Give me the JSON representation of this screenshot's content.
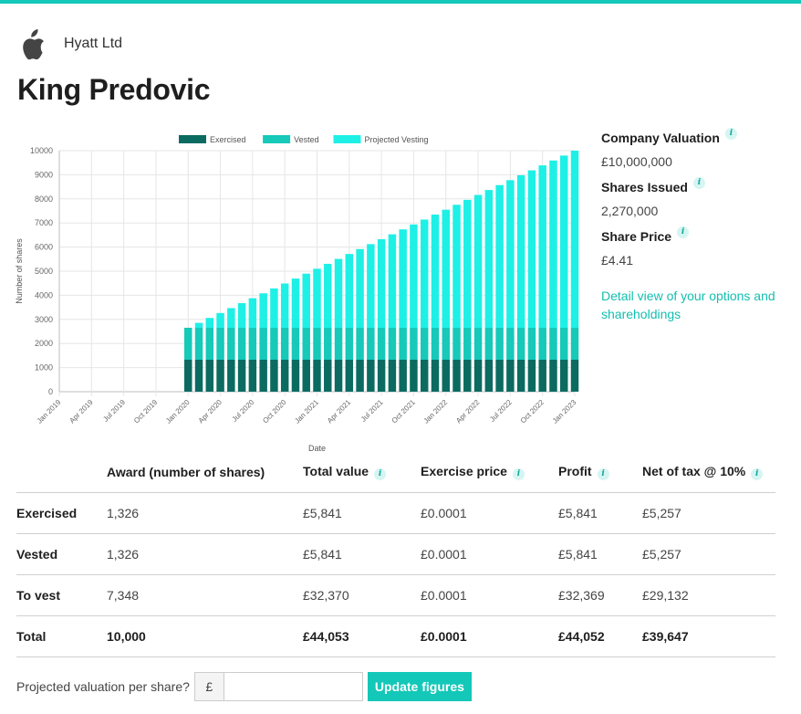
{
  "company": {
    "name": "Hyatt Ltd",
    "logo_icon": "apple-logo-icon"
  },
  "person": {
    "name": "King Predovic"
  },
  "summary": {
    "valuation_label": "Company Valuation",
    "valuation_value": "£10,000,000",
    "shares_label": "Shares Issued",
    "shares_value": "2,270,000",
    "price_label": "Share Price",
    "price_value": "£4.41",
    "detail_link": "Detail view of your options and shareholdings",
    "info_icon": "i"
  },
  "table": {
    "headers": [
      "",
      "Award (number of shares)",
      "Total value",
      "Exercise price",
      "Profit",
      "Net of tax @ 10%"
    ],
    "headers_info": [
      false,
      false,
      true,
      true,
      true,
      true
    ],
    "rows": [
      {
        "label": "Exercised",
        "award": "1,326",
        "total": "£5,841",
        "price": "£0.0001",
        "profit": "£5,841",
        "net": "£5,257"
      },
      {
        "label": "Vested",
        "award": "1,326",
        "total": "£5,841",
        "price": "£0.0001",
        "profit": "£5,841",
        "net": "£5,257"
      },
      {
        "label": "To vest",
        "award": "7,348",
        "total": "£32,370",
        "price": "£0.0001",
        "profit": "£32,369",
        "net": "£29,132"
      },
      {
        "label": "Total",
        "award": "10,000",
        "total": "£44,053",
        "price": "£0.0001",
        "profit": "£44,052",
        "net": "£39,647"
      }
    ]
  },
  "projection": {
    "label": "Projected valuation per share?",
    "currency": "£",
    "value": "",
    "placeholder": "",
    "button": "Update figures"
  },
  "colors": {
    "accent": "#13c8b8",
    "exercised": "#0b6b61",
    "vested": "#16c9b9",
    "projected": "#1ef0e6"
  },
  "chart_data": {
    "type": "bar",
    "stacked": true,
    "xlabel": "Date",
    "ylabel": "Number of shares",
    "ylim": [
      0,
      10000
    ],
    "yticks": [
      0,
      1000,
      2000,
      3000,
      4000,
      5000,
      6000,
      7000,
      8000,
      9000,
      10000
    ],
    "x_ticks": [
      "Jan 2019",
      "Apr 2019",
      "Jul 2019",
      "Oct 2019",
      "Jan 2020",
      "Apr 2020",
      "Jul 2020",
      "Oct 2020",
      "Jan 2021",
      "Apr 2021",
      "Jul 2021",
      "Oct 2021",
      "Jan 2022",
      "Apr 2022",
      "Jul 2022",
      "Oct 2022",
      "Jan 2023"
    ],
    "x_range": [
      "2019-01",
      "2023-01"
    ],
    "bar_start": "2020-01",
    "bar_end": "2023-01",
    "legend_position": "top",
    "grid": true,
    "series": [
      {
        "name": "Exercised",
        "color": "#0b6b61",
        "values": [
          1326,
          1326,
          1326,
          1326,
          1326,
          1326,
          1326,
          1326,
          1326,
          1326,
          1326,
          1326,
          1326,
          1326,
          1326,
          1326,
          1326,
          1326,
          1326,
          1326,
          1326,
          1326,
          1326,
          1326,
          1326,
          1326,
          1326,
          1326,
          1326,
          1326,
          1326,
          1326,
          1326,
          1326,
          1326,
          1326,
          1326
        ]
      },
      {
        "name": "Vested",
        "color": "#16c9b9",
        "values": [
          1326,
          1326,
          1326,
          1326,
          1326,
          1326,
          1326,
          1326,
          1326,
          1326,
          1326,
          1326,
          1326,
          1326,
          1326,
          1326,
          1326,
          1326,
          1326,
          1326,
          1326,
          1326,
          1326,
          1326,
          1326,
          1326,
          1326,
          1326,
          1326,
          1326,
          1326,
          1326,
          1326,
          1326,
          1326,
          1326,
          1326
        ]
      },
      {
        "name": "Projected Vesting",
        "color": "#1ef0e6",
        "values": [
          0,
          204,
          408,
          612,
          816,
          1021,
          1225,
          1429,
          1633,
          1837,
          2041,
          2245,
          2449,
          2653,
          2858,
          3062,
          3266,
          3470,
          3674,
          3878,
          4082,
          4286,
          4490,
          4695,
          4899,
          5103,
          5307,
          5511,
          5715,
          5919,
          6123,
          6327,
          6532,
          6736,
          6940,
          7144,
          7348
        ]
      }
    ]
  }
}
